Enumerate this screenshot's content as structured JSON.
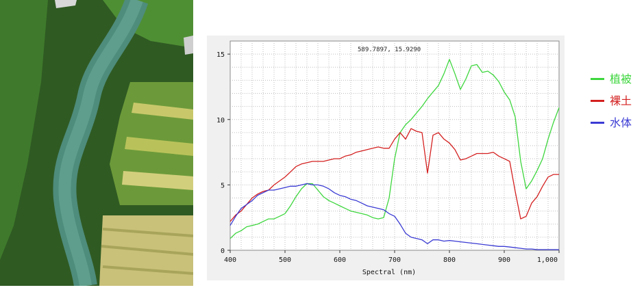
{
  "image": {
    "name": "aerial-hyperspectral-scene"
  },
  "chart_data": {
    "type": "line",
    "title": "",
    "xlabel": "Spectral (nm)",
    "ylabel": "",
    "xlim": [
      400,
      1000
    ],
    "ylim": [
      0,
      16
    ],
    "xticks": [
      400,
      500,
      600,
      700,
      800,
      900,
      1000
    ],
    "xtick_labels": [
      "400",
      "500",
      "600",
      "700",
      "800",
      "900",
      "1,000"
    ],
    "yticks": [
      0,
      5,
      10,
      15
    ],
    "ytick_labels": [
      "0",
      "5",
      "10",
      "15"
    ],
    "grid": true,
    "cursor_readout": "589.7897, 15.9290",
    "legend": {
      "placement": "outside-right"
    },
    "series": [
      {
        "name": "植被",
        "color": "#3dd63d",
        "x": [
          400,
          410,
          420,
          430,
          440,
          450,
          460,
          470,
          480,
          490,
          500,
          510,
          520,
          530,
          540,
          550,
          560,
          570,
          580,
          590,
          600,
          610,
          620,
          630,
          640,
          650,
          660,
          670,
          680,
          690,
          700,
          710,
          720,
          730,
          740,
          750,
          760,
          770,
          780,
          790,
          800,
          810,
          820,
          830,
          840,
          850,
          860,
          870,
          880,
          890,
          900,
          910,
          920,
          930,
          940,
          950,
          960,
          970,
          980,
          990,
          1000
        ],
        "values": [
          0.9,
          1.3,
          1.5,
          1.8,
          1.9,
          2.0,
          2.2,
          2.4,
          2.4,
          2.6,
          2.8,
          3.4,
          4.1,
          4.7,
          5.1,
          5.1,
          4.6,
          4.1,
          3.8,
          3.6,
          3.4,
          3.2,
          3.0,
          2.9,
          2.8,
          2.7,
          2.5,
          2.4,
          2.5,
          4.0,
          7.0,
          9.0,
          9.6,
          10.0,
          10.5,
          11.0,
          11.6,
          12.1,
          12.6,
          13.5,
          14.6,
          13.5,
          12.3,
          13.1,
          14.1,
          14.2,
          13.6,
          13.7,
          13.4,
          12.9,
          12.1,
          11.5,
          10.2,
          6.8,
          4.7,
          5.3,
          6.1,
          7.0,
          8.5,
          9.8,
          10.9
        ]
      },
      {
        "name": "裸土",
        "color": "#d41f1f",
        "x": [
          400,
          410,
          420,
          430,
          440,
          450,
          460,
          470,
          480,
          490,
          500,
          510,
          520,
          530,
          540,
          550,
          560,
          570,
          580,
          590,
          600,
          610,
          620,
          630,
          640,
          650,
          660,
          670,
          680,
          690,
          700,
          710,
          720,
          730,
          740,
          750,
          760,
          770,
          780,
          790,
          800,
          810,
          820,
          830,
          840,
          850,
          860,
          870,
          880,
          890,
          900,
          910,
          920,
          930,
          940,
          950,
          960,
          970,
          980,
          990,
          1000
        ],
        "values": [
          2.2,
          2.7,
          3.0,
          3.5,
          4.0,
          4.3,
          4.5,
          4.6,
          5.0,
          5.3,
          5.6,
          6.0,
          6.4,
          6.6,
          6.7,
          6.8,
          6.8,
          6.8,
          6.9,
          7.0,
          7.0,
          7.2,
          7.3,
          7.5,
          7.6,
          7.7,
          7.8,
          7.9,
          7.8,
          7.8,
          8.5,
          9.0,
          8.5,
          9.3,
          9.1,
          9.0,
          5.9,
          8.8,
          9.0,
          8.5,
          8.2,
          7.7,
          6.9,
          7.0,
          7.2,
          7.4,
          7.4,
          7.4,
          7.5,
          7.2,
          7.0,
          6.8,
          4.5,
          2.4,
          2.6,
          3.6,
          4.1,
          4.9,
          5.6,
          5.8,
          5.8
        ]
      },
      {
        "name": "水体",
        "color": "#3a3ad4",
        "x": [
          400,
          410,
          420,
          430,
          440,
          450,
          460,
          470,
          480,
          490,
          500,
          510,
          520,
          530,
          540,
          550,
          560,
          570,
          580,
          590,
          600,
          610,
          620,
          630,
          640,
          650,
          660,
          670,
          680,
          690,
          700,
          710,
          720,
          730,
          740,
          750,
          760,
          770,
          780,
          790,
          800,
          810,
          820,
          830,
          840,
          850,
          860,
          870,
          880,
          890,
          900,
          910,
          920,
          930,
          940,
          950,
          960,
          970,
          980,
          990,
          1000
        ],
        "values": [
          1.9,
          2.6,
          3.2,
          3.5,
          3.8,
          4.2,
          4.4,
          4.6,
          4.6,
          4.7,
          4.8,
          4.9,
          4.9,
          5.0,
          5.1,
          5.0,
          5.0,
          4.9,
          4.7,
          4.4,
          4.2,
          4.1,
          3.9,
          3.8,
          3.6,
          3.4,
          3.3,
          3.2,
          3.1,
          2.8,
          2.6,
          2.0,
          1.3,
          1.0,
          0.9,
          0.8,
          0.5,
          0.8,
          0.8,
          0.7,
          0.75,
          0.7,
          0.65,
          0.6,
          0.55,
          0.5,
          0.45,
          0.4,
          0.35,
          0.3,
          0.3,
          0.25,
          0.2,
          0.15,
          0.1,
          0.1,
          0.05,
          0.05,
          0.05,
          0.05,
          0.05
        ]
      }
    ]
  }
}
